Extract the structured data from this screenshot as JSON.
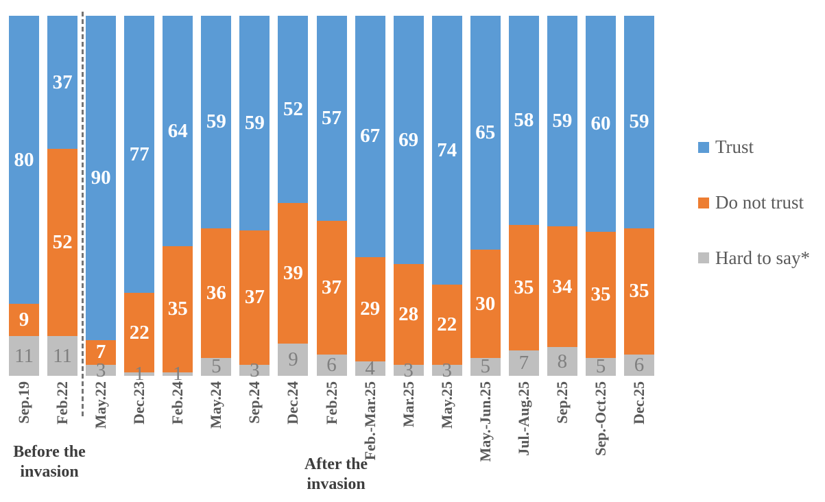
{
  "chart_data": {
    "type": "bar",
    "subtype": "stacked-100-percent-columns",
    "title": "",
    "xlabel": "",
    "ylabel": "",
    "grid": false,
    "legend_position": "right",
    "categories": [
      "Sep.19",
      "Feb.22",
      "May.22",
      "Dec.23",
      "Feb.24",
      "May.24",
      "Sep.24",
      "Dec.24",
      "Feb.25",
      "Feb.-Mar.25",
      "Mar.25",
      "May.25",
      "May.-Jun.25",
      "Jul.-Aug.25",
      "Sep.25",
      "Sep.-Oct.25",
      "Dec.25"
    ],
    "series": [
      {
        "name": "Trust",
        "color": "#5B9BD5",
        "label_color": "#FFFFFF",
        "values": [
          80,
          37,
          90,
          77,
          64,
          59,
          59,
          52,
          57,
          67,
          69,
          74,
          65,
          58,
          59,
          60,
          59
        ]
      },
      {
        "name": "Do not trust",
        "color": "#ED7D31",
        "label_color": "#FFFFFF",
        "values": [
          9,
          52,
          7,
          22,
          35,
          36,
          37,
          39,
          37,
          29,
          28,
          22,
          30,
          35,
          34,
          35,
          35
        ]
      },
      {
        "name": "Hard to say*",
        "color": "#BFBFBF",
        "label_color": "#7F7F7F",
        "values": [
          11,
          11,
          3,
          1,
          1,
          5,
          3,
          9,
          6,
          4,
          3,
          3,
          5,
          7,
          8,
          5,
          6
        ]
      }
    ],
    "annotations": {
      "before": "Before the invasion",
      "after": "After the invasion"
    },
    "divider": {
      "after_category_index": 1,
      "style": "dashed",
      "color": "#757575"
    }
  }
}
